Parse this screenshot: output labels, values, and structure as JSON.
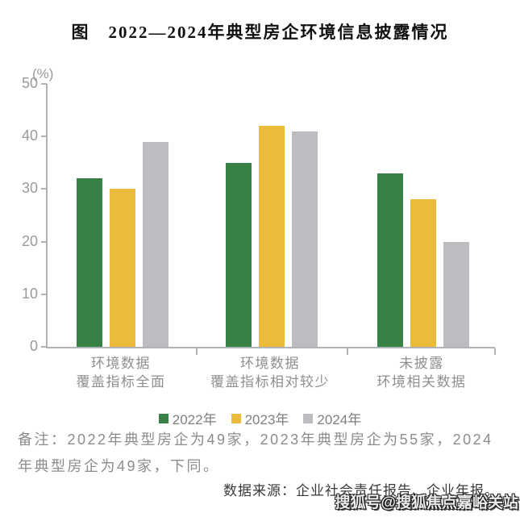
{
  "page": {
    "title": "图　2022—2024年典型房企环境信息披露情况",
    "note": "备注：2022年典型房企为49家，2023年典型房企为55家，2024年典型房企为49家，下同。",
    "source": "数据来源：企业社会责任报告、企业年报。",
    "watermark": "搜狐号@搜狐焦点嘉峪关站"
  },
  "chart_data": {
    "type": "bar",
    "title": "2022—2024年典型房企环境信息披露情况",
    "unit_label": "(%)",
    "categories": [
      [
        "环境数据",
        "覆盖指标全面"
      ],
      [
        "环境数据",
        "覆盖指标相对较少"
      ],
      [
        "未披露",
        "环境相关数据"
      ]
    ],
    "series": [
      {
        "name": "2022年",
        "color": "#388144",
        "values": [
          32,
          35,
          33
        ]
      },
      {
        "name": "2023年",
        "color": "#edbb3c",
        "values": [
          30,
          42,
          28
        ]
      },
      {
        "name": "2024年",
        "color": "#bdbdc1",
        "values": [
          39,
          41,
          20
        ]
      }
    ],
    "xlabel": "",
    "ylabel": "(%)",
    "ylim": [
      0,
      50
    ],
    "yticks": [
      0,
      10,
      20,
      30,
      40,
      50
    ],
    "grid": false,
    "legend_position": "bottom"
  },
  "colors": {
    "axis": "#b0b3b5",
    "tick_label": "#9a9a9a",
    "category_label": "#8f8f8f",
    "legend_label": "#808080",
    "note_text": "#8c8c8c",
    "source_text": "#3a3a3a",
    "title_text": "#111111"
  }
}
